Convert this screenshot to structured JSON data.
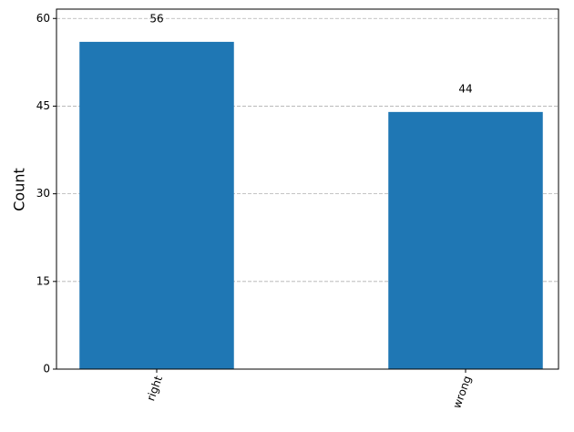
{
  "chart_data": {
    "type": "bar",
    "y_label": "Count",
    "categories": [
      "right",
      "wrong"
    ],
    "values": [
      56,
      44
    ],
    "color": "#1f77b4",
    "ylim": [
      0,
      61.6
    ],
    "yticks": [
      0,
      15,
      30,
      45,
      60
    ],
    "grid": true
  }
}
